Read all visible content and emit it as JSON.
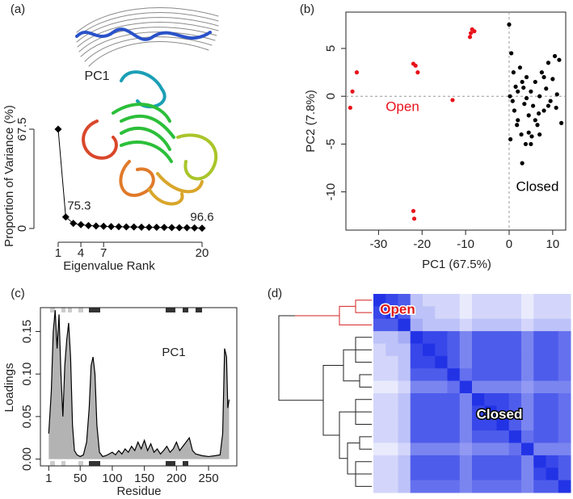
{
  "chart_data": [
    {
      "type": "scree",
      "panel": "(a)",
      "image_label": "PC1",
      "xlabel": "Eigenvalue Rank",
      "ylabel": "Proportion of Variance (%)",
      "x": [
        1,
        2,
        3,
        4,
        5,
        6,
        7,
        8,
        9,
        10,
        11,
        12,
        13,
        14,
        15,
        16,
        17,
        18,
        19,
        20
      ],
      "values": [
        67.5,
        7.8,
        3.5,
        2.6,
        2.0,
        1.7,
        1.5,
        1.3,
        1.2,
        1.1,
        1.0,
        0.9,
        0.8,
        0.8,
        0.7,
        0.6,
        0.5,
        0.5,
        0.4,
        0.2
      ],
      "annotations": [
        {
          "x": 2,
          "text": "75.3"
        },
        {
          "x": 20,
          "text": "96.6"
        }
      ],
      "color": "#000000",
      "xlim": [
        0,
        21
      ],
      "ylim": [
        -2,
        72
      ],
      "xticks": [
        1,
        4,
        7,
        20
      ],
      "yticks": [
        0,
        67.5
      ]
    },
    {
      "type": "scatter",
      "panel": "(b)",
      "xlabel": "PC1 (67.5%)",
      "ylabel": "PC2 (7.8%)",
      "series": [
        {
          "name": "Open",
          "color": "#e8121b",
          "x": [
            -36.5,
            -36,
            -35,
            -22,
            -21.5,
            -21,
            -22,
            -21.8,
            -13,
            -9,
            -8.8,
            -8.5,
            -8
          ],
          "values": [
            -1.2,
            0.5,
            2.5,
            3.4,
            3.2,
            2.5,
            -12,
            -12.8,
            -0.4,
            6.2,
            6.6,
            7,
            6.8
          ]
        },
        {
          "name": "Closed",
          "color": "#000000",
          "x": [
            0.5,
            1,
            1.5,
            2,
            0.8,
            1.2,
            2.5,
            3,
            3.5,
            4,
            4.5,
            5,
            5.5,
            6,
            6.5,
            7,
            7.5,
            8,
            8.5,
            9,
            9.5,
            10,
            10.5,
            11,
            11.5,
            12,
            1.8,
            2.8,
            3.8,
            4.5,
            5.2,
            3,
            2,
            6,
            7,
            4,
            5,
            8,
            9,
            0.3,
            0.2,
            0,
            6.8,
            10.8,
            3.3
          ],
          "values": [
            4.5,
            2.5,
            1,
            0.5,
            -0.5,
            -1.5,
            3,
            1.5,
            -0.8,
            2,
            -2,
            0.5,
            -1,
            1.5,
            -3,
            0,
            2.5,
            -1.5,
            0.8,
            3.5,
            -0.5,
            1.8,
            4.2,
            0.2,
            3.8,
            -2.8,
            -3,
            -4,
            -5,
            -3.8,
            -4.2,
            -7,
            -2.5,
            -2.5,
            -4,
            -0.2,
            -5,
            2,
            -1,
            -4.5,
            0,
            7.5,
            -1.8,
            -1.2,
            0.9
          ]
        }
      ],
      "hlines": [
        0
      ],
      "vlines": [
        0
      ],
      "xlim": [
        -37.5,
        13
      ],
      "ylim": [
        -14,
        8.8
      ],
      "xticks": [
        -30,
        -20,
        -10,
        0,
        10
      ],
      "yticks": [
        -10,
        -5,
        0,
        5
      ]
    },
    {
      "type": "loadings",
      "panel": "(c)",
      "annotation": "PC1",
      "xlabel": "Residue",
      "ylabel": "Loadings",
      "x": [
        1,
        5,
        8,
        11,
        14,
        17,
        20,
        23,
        26,
        29,
        32,
        35,
        38,
        41,
        45,
        50,
        55,
        60,
        64,
        67,
        70,
        73,
        76,
        80,
        85,
        90,
        95,
        100,
        105,
        110,
        115,
        120,
        125,
        130,
        135,
        140,
        145,
        150,
        155,
        160,
        165,
        170,
        175,
        180,
        185,
        190,
        195,
        200,
        205,
        210,
        215,
        220,
        225,
        230,
        240,
        250,
        260,
        268,
        272,
        275,
        278,
        280,
        282
      ],
      "values": [
        0.03,
        0.08,
        0.15,
        0.175,
        0.13,
        0.17,
        0.1,
        0.05,
        0.11,
        0.14,
        0.16,
        0.12,
        0.04,
        0.01,
        0.005,
        0.003,
        0.005,
        0.02,
        0.06,
        0.11,
        0.12,
        0.1,
        0.04,
        0.008,
        0.003,
        0.004,
        0.006,
        0.008,
        0.005,
        0.01,
        0.006,
        0.012,
        0.008,
        0.015,
        0.01,
        0.02,
        0.012,
        0.022,
        0.01,
        0.018,
        0.008,
        0.012,
        0.006,
        0.01,
        0.015,
        0.008,
        0.012,
        0.02,
        0.01,
        0.015,
        0.02,
        0.025,
        0.01,
        0.006,
        0.004,
        0.003,
        0.004,
        0.005,
        0.03,
        0.13,
        0.12,
        0.06,
        0.07
      ],
      "color": "#000000",
      "fill": "#b3b3b3",
      "xlim": [
        -12,
        294
      ],
      "ylim": [
        -0.008,
        0.178
      ],
      "xticks": [
        1,
        50,
        100,
        150,
        200,
        250
      ],
      "yticks": [
        {
          "value": 0,
          "label": "0.00"
        },
        0.05,
        {
          "value": 0.1,
          "label": "0.10"
        },
        0.15
      ]
    },
    {
      "type": "heatmap",
      "panel": "(d)",
      "cluster_labels": [
        "Open",
        "Closed"
      ],
      "color_low": "#ffffff",
      "color_high": "#2233e6",
      "z": [
        [
          1.0,
          0.9,
          0.8,
          0.3,
          0.2,
          0.2,
          0.2,
          0.1,
          0.2,
          0.2,
          0.2,
          0.2,
          0.1,
          0.2,
          0.2,
          0.2
        ],
        [
          0.9,
          1.0,
          0.8,
          0.3,
          0.3,
          0.2,
          0.2,
          0.1,
          0.2,
          0.2,
          0.2,
          0.2,
          0.1,
          0.2,
          0.2,
          0.2
        ],
        [
          0.8,
          0.8,
          1.0,
          0.4,
          0.3,
          0.3,
          0.3,
          0.2,
          0.3,
          0.3,
          0.3,
          0.3,
          0.2,
          0.3,
          0.3,
          0.3
        ],
        [
          0.3,
          0.3,
          0.4,
          1.0,
          0.9,
          0.9,
          0.8,
          0.6,
          0.8,
          0.8,
          0.8,
          0.8,
          0.6,
          0.8,
          0.8,
          0.7
        ],
        [
          0.2,
          0.3,
          0.3,
          0.9,
          1.0,
          0.9,
          0.8,
          0.6,
          0.8,
          0.8,
          0.8,
          0.8,
          0.6,
          0.8,
          0.8,
          0.7
        ],
        [
          0.2,
          0.2,
          0.3,
          0.9,
          0.9,
          1.0,
          0.8,
          0.6,
          0.8,
          0.8,
          0.8,
          0.8,
          0.6,
          0.8,
          0.8,
          0.7
        ],
        [
          0.2,
          0.2,
          0.3,
          0.8,
          0.8,
          0.8,
          1.0,
          0.7,
          0.8,
          0.8,
          0.8,
          0.8,
          0.6,
          0.8,
          0.8,
          0.7
        ],
        [
          0.1,
          0.1,
          0.2,
          0.6,
          0.6,
          0.6,
          0.7,
          1.0,
          0.6,
          0.6,
          0.6,
          0.6,
          0.5,
          0.6,
          0.6,
          0.6
        ],
        [
          0.2,
          0.2,
          0.3,
          0.8,
          0.8,
          0.8,
          0.8,
          0.6,
          1.0,
          0.9,
          0.9,
          0.8,
          0.6,
          0.8,
          0.8,
          0.7
        ],
        [
          0.2,
          0.2,
          0.3,
          0.8,
          0.8,
          0.8,
          0.8,
          0.6,
          0.9,
          1.0,
          0.9,
          0.8,
          0.6,
          0.8,
          0.8,
          0.7
        ],
        [
          0.2,
          0.2,
          0.3,
          0.8,
          0.8,
          0.8,
          0.8,
          0.6,
          0.9,
          0.9,
          1.0,
          0.8,
          0.6,
          0.8,
          0.8,
          0.7
        ],
        [
          0.2,
          0.2,
          0.3,
          0.8,
          0.8,
          0.8,
          0.8,
          0.6,
          0.8,
          0.8,
          0.8,
          1.0,
          0.7,
          0.8,
          0.8,
          0.7
        ],
        [
          0.1,
          0.1,
          0.2,
          0.6,
          0.6,
          0.6,
          0.6,
          0.5,
          0.6,
          0.6,
          0.6,
          0.7,
          1.0,
          0.6,
          0.6,
          0.6
        ],
        [
          0.2,
          0.2,
          0.3,
          0.8,
          0.8,
          0.8,
          0.8,
          0.6,
          0.8,
          0.8,
          0.8,
          0.8,
          0.6,
          1.0,
          0.9,
          0.8
        ],
        [
          0.2,
          0.2,
          0.3,
          0.8,
          0.8,
          0.8,
          0.8,
          0.6,
          0.8,
          0.8,
          0.8,
          0.8,
          0.6,
          0.9,
          1.0,
          0.8
        ],
        [
          0.2,
          0.2,
          0.3,
          0.7,
          0.7,
          0.7,
          0.7,
          0.6,
          0.7,
          0.7,
          0.7,
          0.7,
          0.6,
          0.8,
          0.8,
          1.0
        ]
      ]
    }
  ]
}
